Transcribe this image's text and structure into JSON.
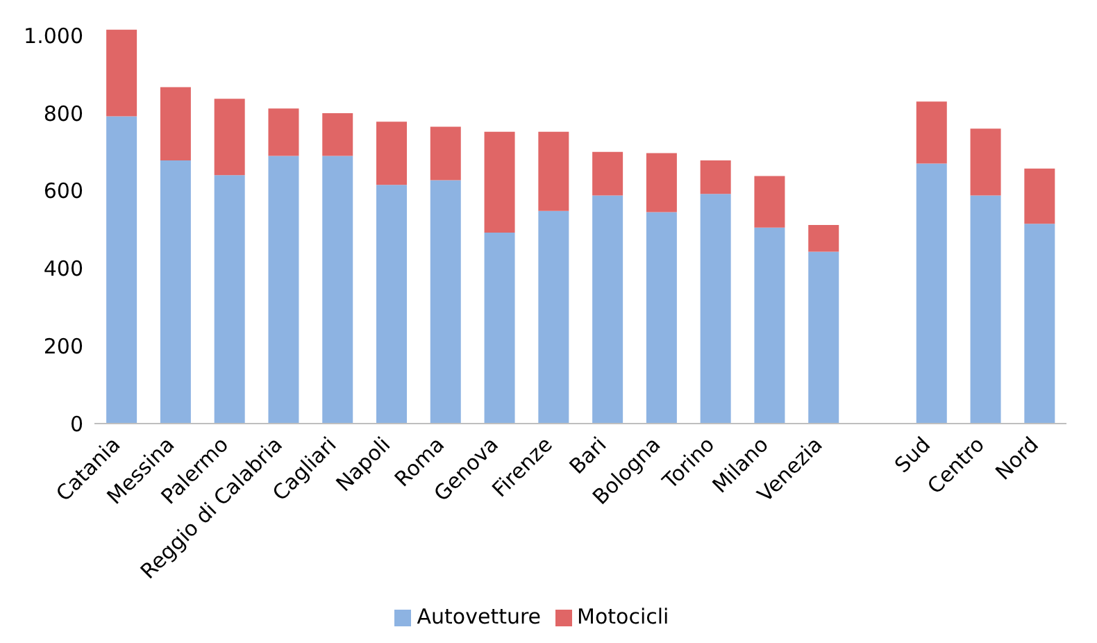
{
  "chart_data": {
    "type": "bar",
    "stacked": true,
    "categories": [
      "Catania",
      "Messina",
      "Palermo",
      "Reggio di Calabria",
      "Cagliari",
      "Napoli",
      "Roma",
      "Genova",
      "Firenze",
      "Bari",
      "Bologna",
      "Torino",
      "Milano",
      "Venezia",
      null,
      "Sud",
      "Centro",
      "Nord"
    ],
    "series": [
      {
        "name": "Autovetture",
        "color": "#8db3e2",
        "values": [
          792,
          678,
          640,
          690,
          690,
          615,
          627,
          492,
          548,
          588,
          545,
          592,
          505,
          443,
          null,
          670,
          588,
          515
        ]
      },
      {
        "name": "Motocicli",
        "color": "#e06666",
        "values": [
          223,
          189,
          197,
          122,
          110,
          163,
          138,
          260,
          204,
          112,
          152,
          86,
          133,
          69,
          null,
          160,
          172,
          142
        ]
      }
    ],
    "ylim": [
      0,
      1020
    ],
    "yticks": [
      0,
      200,
      400,
      600,
      800,
      {
        "value": 1000,
        "label": "1.000"
      }
    ],
    "grid": false,
    "legend": "bottom"
  }
}
